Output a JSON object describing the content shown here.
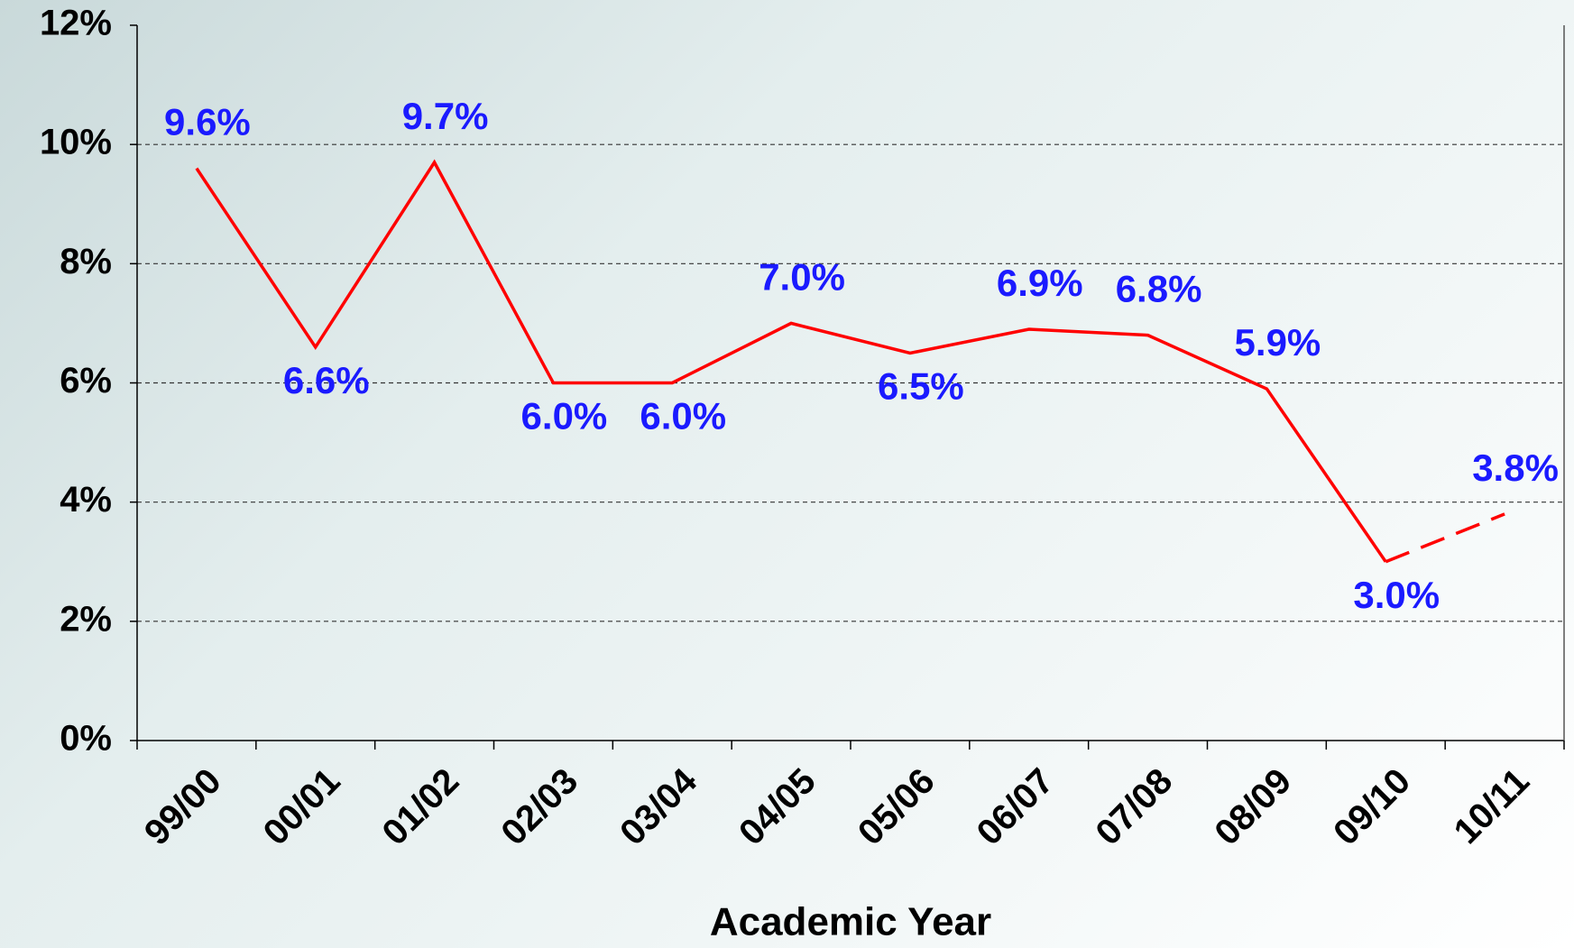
{
  "chart_data": {
    "type": "line",
    "x_label": "Academic Year",
    "categories": [
      "99/00",
      "00/01",
      "01/02",
      "02/03",
      "03/04",
      "04/05",
      "05/06",
      "06/07",
      "07/08",
      "08/09",
      "09/10",
      "10/11"
    ],
    "values": [
      9.6,
      6.6,
      9.7,
      6.0,
      6.0,
      7.0,
      6.5,
      6.9,
      6.8,
      5.9,
      3.0,
      3.8
    ],
    "value_labels": [
      "9.6%",
      "6.6%",
      "9.7%",
      "6.0%",
      "6.0%",
      "7.0%",
      "6.5%",
      "6.9%",
      "6.8%",
      "5.9%",
      "3.0%",
      "3.8%"
    ],
    "color": "#ff0000",
    "label_color": "#1a1aff",
    "dashed_segments": [
      10
    ],
    "ylim": [
      0,
      12
    ],
    "yticks": [
      {
        "value": 0,
        "label": "0%"
      },
      {
        "value": 2,
        "label": "2%"
      },
      {
        "value": 4,
        "label": "4%"
      },
      {
        "value": 6,
        "label": "6%"
      },
      {
        "value": 8,
        "label": "8%"
      },
      {
        "value": 10,
        "label": "10%"
      },
      {
        "value": 12,
        "label": "12%"
      }
    ],
    "grid": true
  }
}
